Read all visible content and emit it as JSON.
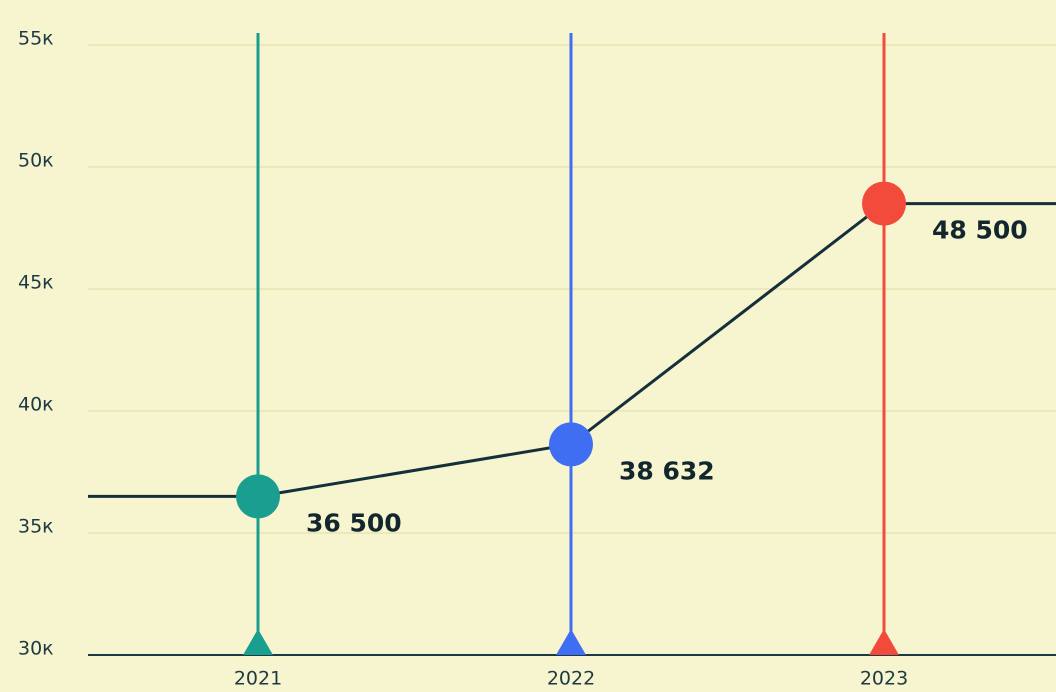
{
  "chart_data": {
    "type": "line",
    "categories": [
      "2021",
      "2022",
      "2023"
    ],
    "values": [
      36500,
      38632,
      48500
    ],
    "value_labels": [
      "36 500",
      "38 632",
      "48 500"
    ],
    "colors": [
      "#1a9e8f",
      "#3f6ef3",
      "#f24b3c"
    ],
    "line_color": "#15303a",
    "ylim": [
      30000,
      55000
    ],
    "yticks": [
      {
        "value": 30000,
        "label": "30к"
      },
      {
        "value": 35000,
        "label": "35к"
      },
      {
        "value": 40000,
        "label": "40к"
      },
      {
        "value": 45000,
        "label": "45к"
      },
      {
        "value": 50000,
        "label": "50к"
      },
      {
        "value": 55000,
        "label": "55к"
      }
    ],
    "grid": true
  }
}
